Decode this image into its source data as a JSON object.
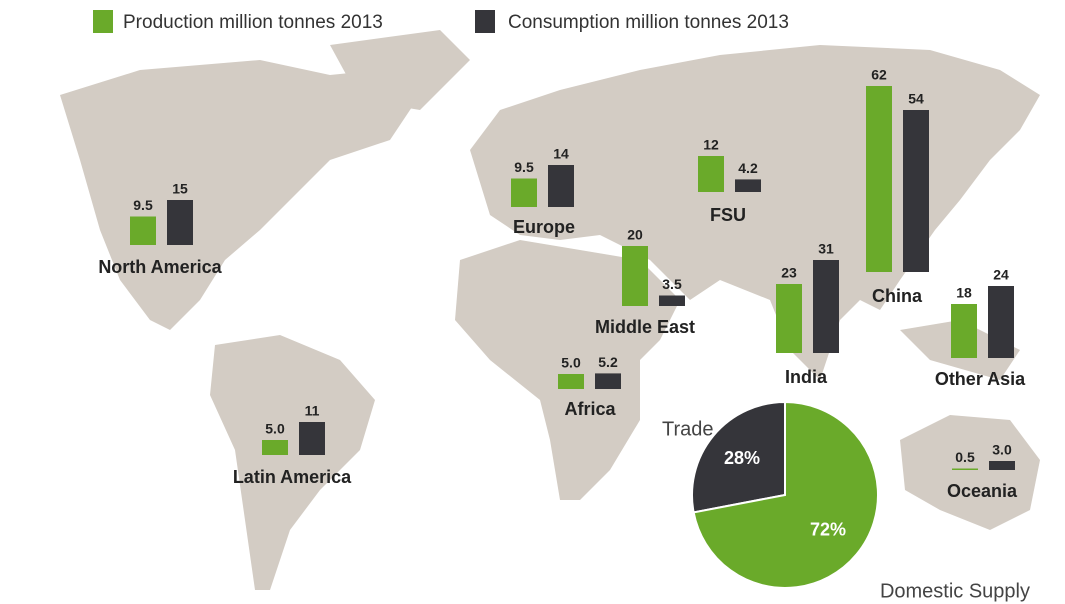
{
  "chart_data": [
    {
      "type": "bar",
      "categories": [
        "North America",
        "Latin America",
        "Europe",
        "Middle East",
        "Africa",
        "FSU",
        "India",
        "China",
        "Other Asia",
        "Oceania"
      ],
      "series": [
        {
          "name": "Production million tonnes 2013",
          "color": "#6aaa2a",
          "values": [
            9.5,
            5.0,
            9.5,
            20,
            5.0,
            12,
            23,
            62,
            18,
            0.5
          ],
          "value_labels": [
            "9.5",
            "5.0",
            "9.5",
            "20",
            "5.0",
            "12",
            "23",
            "62",
            "18",
            "0.5"
          ]
        },
        {
          "name": "Consumption million tonnes 2013",
          "color": "#35353a",
          "values": [
            15,
            11,
            14,
            3.5,
            5.2,
            4.2,
            31,
            54,
            24,
            3.0
          ],
          "value_labels": [
            "15",
            "11",
            "14",
            "3.5",
            "5.2",
            "4.2",
            "31",
            "54",
            "24",
            "3.0"
          ]
        }
      ]
    },
    {
      "type": "pie",
      "categories": [
        "Trade",
        "Domestic Supply"
      ],
      "values": [
        28,
        72
      ],
      "value_labels": [
        "28%",
        "72%"
      ],
      "colors": [
        "#35353a",
        "#6aaa2a"
      ]
    }
  ]
}
